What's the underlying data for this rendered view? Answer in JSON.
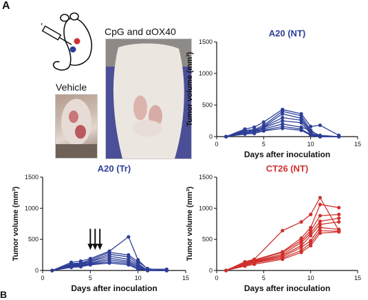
{
  "panel_letter": "A",
  "panel_letter_next": "B",
  "captions": {
    "vehicle": "Vehicle",
    "treated": "CpG and αOX40"
  },
  "colors": {
    "blue": "#2d3e97",
    "red": "#d0312d"
  },
  "chart_data": [
    {
      "type": "line",
      "title": "A20 (NT)",
      "xlabel": "Days after inoculation",
      "ylabel": "Tumor volume (mm³)",
      "xlim": [
        0,
        15
      ],
      "ylim": [
        0,
        1500
      ],
      "xticks": [
        0,
        5,
        10,
        15
      ],
      "yticks": [
        0,
        500,
        1000,
        1500
      ],
      "color": "blue",
      "x": [
        1,
        3,
        4,
        5,
        7,
        9,
        10,
        11,
        13
      ],
      "series": [
        {
          "values": [
            0,
            120,
            150,
            230,
            430,
            360,
            160,
            180,
            20
          ]
        },
        {
          "values": [
            0,
            100,
            110,
            180,
            400,
            330,
            100,
            0,
            0
          ]
        },
        {
          "values": [
            0,
            90,
            80,
            160,
            360,
            290,
            80,
            20,
            0
          ]
        },
        {
          "values": [
            0,
            80,
            100,
            150,
            300,
            260,
            60,
            0,
            0
          ]
        },
        {
          "values": [
            0,
            70,
            60,
            140,
            250,
            220,
            40,
            0,
            0
          ]
        },
        {
          "values": [
            0,
            60,
            90,
            120,
            200,
            150,
            100,
            0,
            0
          ]
        },
        {
          "values": [
            0,
            50,
            70,
            100,
            160,
            120,
            30,
            0,
            0
          ]
        },
        {
          "values": [
            0,
            40,
            50,
            90,
            130,
            100,
            20,
            0,
            0
          ]
        }
      ]
    },
    {
      "type": "line",
      "title": "A20 (Tr)",
      "xlabel": "Days after inoculation",
      "ylabel": "Tumor volume (mm³)",
      "xlim": [
        0,
        15
      ],
      "ylim": [
        0,
        1500
      ],
      "xticks": [
        0,
        5,
        10,
        15
      ],
      "yticks": [
        0,
        500,
        1000,
        1500
      ],
      "color": "blue",
      "arrows_at_x": [
        5,
        5.5,
        6
      ],
      "x": [
        1,
        3,
        4,
        5,
        7,
        9,
        10,
        11,
        13
      ],
      "series": [
        {
          "values": [
            0,
            130,
            150,
            190,
            310,
            540,
            170,
            20,
            20
          ]
        },
        {
          "values": [
            0,
            110,
            120,
            170,
            290,
            250,
            140,
            30,
            0
          ]
        },
        {
          "values": [
            0,
            100,
            110,
            150,
            260,
            220,
            110,
            0,
            0
          ]
        },
        {
          "values": [
            0,
            90,
            100,
            140,
            230,
            180,
            90,
            0,
            0
          ]
        },
        {
          "values": [
            0,
            80,
            90,
            120,
            200,
            150,
            70,
            0,
            0
          ]
        },
        {
          "values": [
            0,
            70,
            80,
            110,
            170,
            130,
            50,
            0,
            0
          ]
        },
        {
          "values": [
            0,
            60,
            70,
            100,
            140,
            110,
            30,
            0,
            0
          ]
        },
        {
          "values": [
            0,
            50,
            60,
            90,
            120,
            90,
            20,
            0,
            0
          ]
        }
      ]
    },
    {
      "type": "line",
      "title": "CT26 (NT)",
      "xlabel": "Days after inoculation",
      "ylabel": "Tumor volume (mm³)",
      "xlim": [
        0,
        15
      ],
      "ylim": [
        0,
        1500
      ],
      "xticks": [
        0,
        5,
        10,
        15
      ],
      "yticks": [
        0,
        500,
        1000,
        1500
      ],
      "color": "red",
      "x": [
        1,
        3,
        4,
        7,
        9,
        10,
        11,
        13
      ],
      "series": [
        {
          "values": [
            0,
            140,
            180,
            640,
            780,
            900,
            1170,
            640
          ]
        },
        {
          "values": [
            0,
            130,
            170,
            300,
            520,
            690,
            1060,
            1010
          ]
        },
        {
          "values": [
            0,
            120,
            160,
            290,
            480,
            640,
            880,
            900
          ]
        },
        {
          "values": [
            0,
            110,
            150,
            260,
            450,
            600,
            790,
            840
          ]
        },
        {
          "values": [
            0,
            100,
            140,
            240,
            400,
            560,
            740,
            780
          ]
        },
        {
          "values": [
            0,
            90,
            130,
            220,
            370,
            480,
            690,
            660
          ]
        },
        {
          "values": [
            0,
            80,
            120,
            200,
            320,
            440,
            640,
            630
          ]
        },
        {
          "values": [
            0,
            70,
            100,
            180,
            290,
            400,
            600,
            620
          ]
        }
      ]
    }
  ]
}
